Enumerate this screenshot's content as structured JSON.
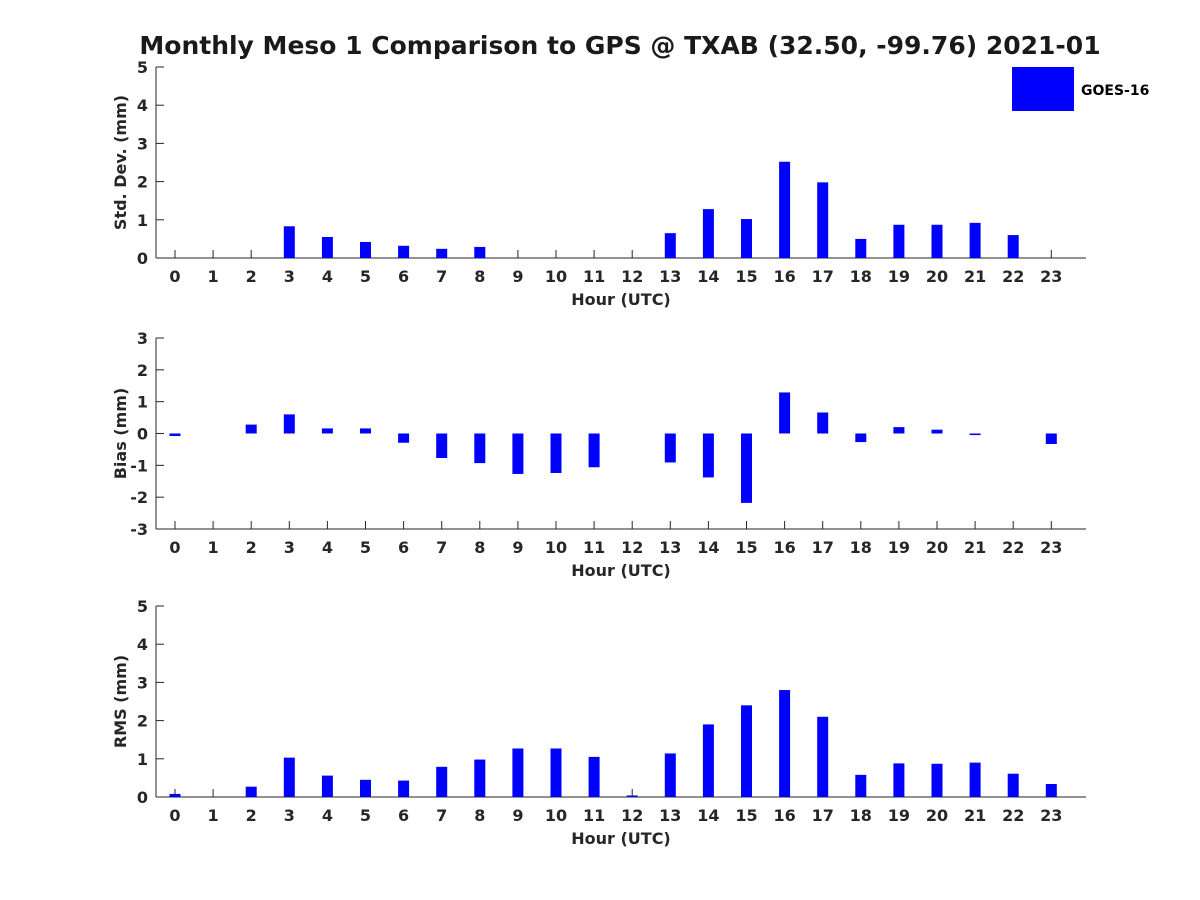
{
  "title": "Monthly Meso 1 Comparison to GPS @ TXAB (32.50, -99.76) 2021-01",
  "legend": {
    "label": "GOES-16",
    "color": "#0000ff"
  },
  "colors": {
    "bar": "#0000ff",
    "axis": "#262626"
  },
  "chart_data": [
    {
      "type": "bar",
      "ylabel": "Std. Dev. (mm)",
      "xlabel": "Hour (UTC)",
      "ylim": [
        0,
        5
      ],
      "yticks": [
        0,
        1,
        2,
        3,
        4,
        5
      ],
      "categories": [
        0,
        1,
        2,
        3,
        4,
        5,
        6,
        7,
        8,
        9,
        10,
        11,
        12,
        13,
        14,
        15,
        16,
        17,
        18,
        19,
        20,
        21,
        22,
        23
      ],
      "series": [
        {
          "name": "GOES-16",
          "values": [
            0,
            0,
            0,
            0.83,
            0.55,
            0.42,
            0.32,
            0.24,
            0.29,
            0,
            0,
            0,
            0,
            0.65,
            1.28,
            1.02,
            2.52,
            1.98,
            0.5,
            0.87,
            0.87,
            0.92,
            0.6,
            0
          ]
        }
      ]
    },
    {
      "type": "bar",
      "ylabel": "Bias (mm)",
      "xlabel": "Hour (UTC)",
      "ylim": [
        -3,
        3
      ],
      "yticks": [
        -3,
        -2,
        -1,
        0,
        1,
        2,
        3
      ],
      "categories": [
        0,
        1,
        2,
        3,
        4,
        5,
        6,
        7,
        8,
        9,
        10,
        11,
        12,
        13,
        14,
        15,
        16,
        17,
        18,
        19,
        20,
        21,
        22,
        23
      ],
      "series": [
        {
          "name": "GOES-16",
          "values": [
            -0.08,
            0,
            0.28,
            0.6,
            0.16,
            0.16,
            -0.29,
            -0.77,
            -0.93,
            -1.27,
            -1.24,
            -1.06,
            0,
            -0.91,
            -1.38,
            -2.18,
            1.29,
            0.66,
            -0.27,
            0.2,
            0.12,
            -0.05,
            0,
            -0.33
          ]
        }
      ]
    },
    {
      "type": "bar",
      "ylabel": "RMS (mm)",
      "xlabel": "Hour (UTC)",
      "ylim": [
        0,
        5
      ],
      "yticks": [
        0,
        1,
        2,
        3,
        4,
        5
      ],
      "categories": [
        0,
        1,
        2,
        3,
        4,
        5,
        6,
        7,
        8,
        9,
        10,
        11,
        12,
        13,
        14,
        15,
        16,
        17,
        18,
        19,
        20,
        21,
        22,
        23
      ],
      "series": [
        {
          "name": "GOES-16",
          "values": [
            0.08,
            0,
            0.27,
            1.03,
            0.56,
            0.45,
            0.43,
            0.79,
            0.98,
            1.27,
            1.27,
            1.05,
            0.04,
            1.14,
            1.9,
            2.4,
            2.8,
            2.1,
            0.58,
            0.88,
            0.87,
            0.9,
            0.61,
            0.34
          ]
        }
      ]
    }
  ]
}
